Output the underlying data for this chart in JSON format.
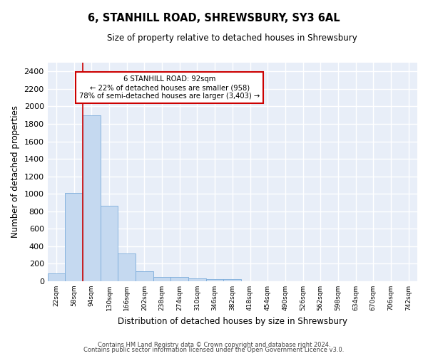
{
  "title": "6, STANHILL ROAD, SHREWSBURY, SY3 6AL",
  "subtitle": "Size of property relative to detached houses in Shrewsbury",
  "xlabel": "Distribution of detached houses by size in Shrewsbury",
  "ylabel": "Number of detached properties",
  "bar_color": "#c5d9f0",
  "bar_edge_color": "#7aabda",
  "background_color": "#e8eef8",
  "grid_color": "#ffffff",
  "bin_labels": [
    "22sqm",
    "58sqm",
    "94sqm",
    "130sqm",
    "166sqm",
    "202sqm",
    "238sqm",
    "274sqm",
    "310sqm",
    "346sqm",
    "382sqm",
    "418sqm",
    "454sqm",
    "490sqm",
    "526sqm",
    "562sqm",
    "598sqm",
    "634sqm",
    "670sqm",
    "706sqm",
    "742sqm"
  ],
  "bar_heights": [
    90,
    1010,
    1900,
    860,
    320,
    115,
    50,
    45,
    30,
    20,
    20,
    0,
    0,
    0,
    0,
    0,
    0,
    0,
    0,
    0,
    0
  ],
  "ylim": [
    0,
    2500
  ],
  "yticks": [
    0,
    200,
    400,
    600,
    800,
    1000,
    1200,
    1400,
    1600,
    1800,
    2000,
    2200,
    2400
  ],
  "annotation_text": "6 STANHILL ROAD: 92sqm\n← 22% of detached houses are smaller (958)\n78% of semi-detached houses are larger (3,403) →",
  "annotation_box_color": "white",
  "annotation_box_edge": "#cc0000",
  "red_line_color": "#cc0000",
  "footer_line1": "Contains HM Land Registry data © Crown copyright and database right 2024.",
  "footer_line2": "Contains public sector information licensed under the Open Government Licence v3.0."
}
